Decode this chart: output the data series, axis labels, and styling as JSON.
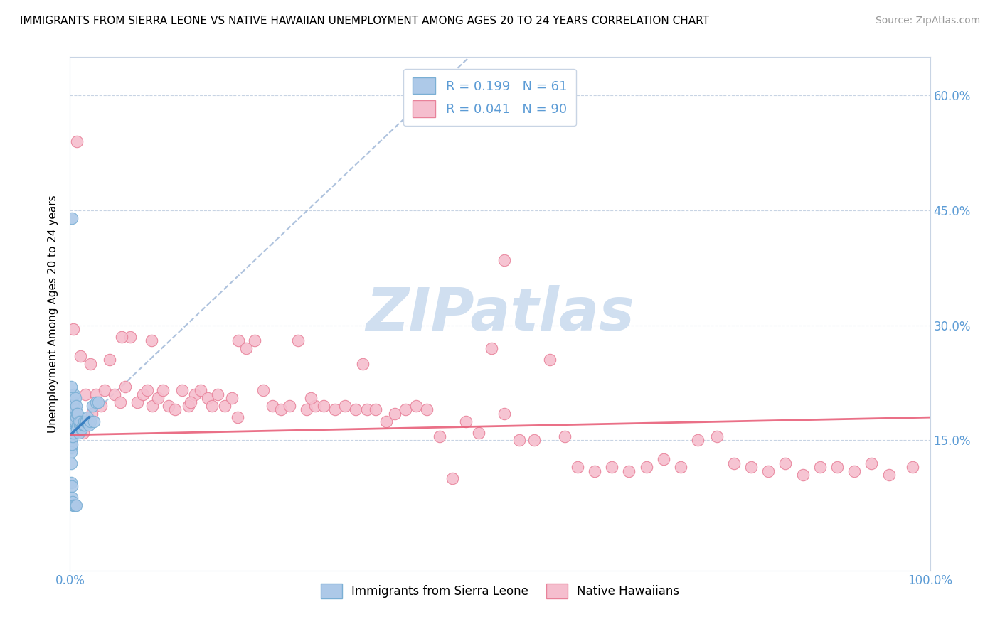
{
  "title": "IMMIGRANTS FROM SIERRA LEONE VS NATIVE HAWAIIAN UNEMPLOYMENT AMONG AGES 20 TO 24 YEARS CORRELATION CHART",
  "source": "Source: ZipAtlas.com",
  "ylabel": "Unemployment Among Ages 20 to 24 years",
  "xlim": [
    0,
    1.0
  ],
  "ylim": [
    -0.02,
    0.65
  ],
  "yticks": [
    0.15,
    0.3,
    0.45,
    0.6
  ],
  "ytick_labels": [
    "15.0%",
    "30.0%",
    "45.0%",
    "60.0%"
  ],
  "xticks": [
    0.0,
    0.25,
    0.5,
    0.75,
    1.0
  ],
  "series1_name": "Immigrants from Sierra Leone",
  "series1_R": 0.199,
  "series1_N": 61,
  "series1_color": "#adc9e8",
  "series1_edge": "#7aafd4",
  "series2_name": "Native Hawaiians",
  "series2_R": 0.041,
  "series2_N": 90,
  "series2_color": "#f5bece",
  "series2_edge": "#e8829a",
  "trend1_solid_color": "#3a7fc1",
  "trend1_dashed_color": "#a0b8d8",
  "trend2_color": "#e8607a",
  "axis_color": "#5b9bd5",
  "background_color": "#ffffff",
  "watermark": "ZIPatlas",
  "watermark_color": "#d0dff0",
  "grid_color": "#c8d4e4",
  "title_fontsize": 11,
  "series1_x": [
    0.001,
    0.001,
    0.001,
    0.001,
    0.001,
    0.002,
    0.002,
    0.002,
    0.002,
    0.002,
    0.002,
    0.003,
    0.003,
    0.003,
    0.003,
    0.003,
    0.004,
    0.004,
    0.004,
    0.004,
    0.005,
    0.005,
    0.005,
    0.006,
    0.006,
    0.006,
    0.007,
    0.007,
    0.008,
    0.008,
    0.009,
    0.009,
    0.01,
    0.01,
    0.011,
    0.012,
    0.013,
    0.014,
    0.015,
    0.016,
    0.017,
    0.018,
    0.019,
    0.02,
    0.022,
    0.024,
    0.026,
    0.028,
    0.03,
    0.033,
    0.001,
    0.001,
    0.002,
    0.002,
    0.003,
    0.004,
    0.005,
    0.006,
    0.007,
    0.002,
    0.001
  ],
  "series1_y": [
    0.155,
    0.15,
    0.145,
    0.14,
    0.135,
    0.19,
    0.18,
    0.17,
    0.16,
    0.155,
    0.145,
    0.195,
    0.185,
    0.175,
    0.165,
    0.155,
    0.2,
    0.185,
    0.175,
    0.16,
    0.21,
    0.195,
    0.175,
    0.205,
    0.19,
    0.175,
    0.195,
    0.18,
    0.185,
    0.165,
    0.185,
    0.17,
    0.175,
    0.16,
    0.17,
    0.175,
    0.165,
    0.165,
    0.17,
    0.175,
    0.17,
    0.175,
    0.175,
    0.18,
    0.17,
    0.175,
    0.195,
    0.175,
    0.2,
    0.2,
    0.12,
    0.095,
    0.09,
    0.075,
    0.07,
    0.065,
    0.065,
    0.065,
    0.065,
    0.44,
    0.22
  ],
  "series2_x": [
    0.004,
    0.008,
    0.012,
    0.018,
    0.024,
    0.03,
    0.036,
    0.04,
    0.046,
    0.052,
    0.058,
    0.064,
    0.07,
    0.078,
    0.085,
    0.09,
    0.096,
    0.102,
    0.108,
    0.115,
    0.122,
    0.13,
    0.138,
    0.145,
    0.152,
    0.16,
    0.165,
    0.172,
    0.18,
    0.188,
    0.196,
    0.205,
    0.215,
    0.225,
    0.235,
    0.245,
    0.255,
    0.265,
    0.275,
    0.285,
    0.295,
    0.308,
    0.32,
    0.332,
    0.345,
    0.355,
    0.368,
    0.378,
    0.39,
    0.402,
    0.415,
    0.43,
    0.445,
    0.46,
    0.475,
    0.49,
    0.505,
    0.522,
    0.54,
    0.558,
    0.575,
    0.59,
    0.61,
    0.63,
    0.65,
    0.67,
    0.69,
    0.71,
    0.73,
    0.752,
    0.772,
    0.792,
    0.812,
    0.832,
    0.852,
    0.872,
    0.892,
    0.912,
    0.932,
    0.952,
    0.015,
    0.025,
    0.06,
    0.095,
    0.14,
    0.195,
    0.28,
    0.34,
    0.505,
    0.98
  ],
  "series2_y": [
    0.295,
    0.54,
    0.26,
    0.21,
    0.25,
    0.21,
    0.195,
    0.215,
    0.255,
    0.21,
    0.2,
    0.22,
    0.285,
    0.2,
    0.21,
    0.215,
    0.195,
    0.205,
    0.215,
    0.195,
    0.19,
    0.215,
    0.195,
    0.21,
    0.215,
    0.205,
    0.195,
    0.21,
    0.195,
    0.205,
    0.28,
    0.27,
    0.28,
    0.215,
    0.195,
    0.19,
    0.195,
    0.28,
    0.19,
    0.195,
    0.195,
    0.19,
    0.195,
    0.19,
    0.19,
    0.19,
    0.175,
    0.185,
    0.19,
    0.195,
    0.19,
    0.155,
    0.1,
    0.175,
    0.16,
    0.27,
    0.185,
    0.15,
    0.15,
    0.255,
    0.155,
    0.115,
    0.11,
    0.115,
    0.11,
    0.115,
    0.125,
    0.115,
    0.15,
    0.155,
    0.12,
    0.115,
    0.11,
    0.12,
    0.105,
    0.115,
    0.115,
    0.11,
    0.12,
    0.105,
    0.16,
    0.185,
    0.285,
    0.28,
    0.2,
    0.18,
    0.205,
    0.25,
    0.385,
    0.115
  ],
  "trend1_x_start": 0.0,
  "trend1_x_end": 0.5,
  "trend1_solid_x_end": 0.022,
  "trend2_x_start": 0.0,
  "trend2_x_end": 1.0,
  "trend2_y_start": 0.157,
  "trend2_y_end": 0.18
}
